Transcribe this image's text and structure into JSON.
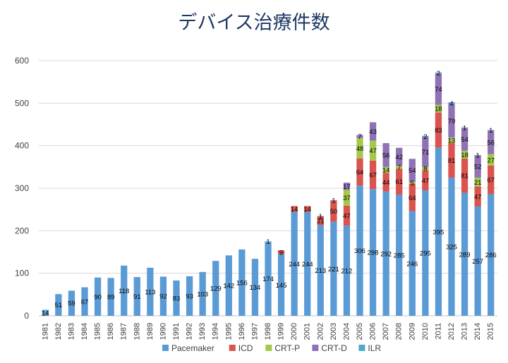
{
  "chart_data": {
    "type": "bar",
    "stacked": true,
    "title": "デバイス治療件数",
    "xlabel": "",
    "ylabel": "",
    "ylim": [
      0,
      600
    ],
    "yticks": [
      0,
      100,
      200,
      300,
      400,
      500,
      600
    ],
    "grid": true,
    "legend_position": "bottom",
    "categories": [
      "1981",
      "1982",
      "1983",
      "1984",
      "1985",
      "1986",
      "1987",
      "1988",
      "1989",
      "1990",
      "1991",
      "1992",
      "1993",
      "1994",
      "1995",
      "1996",
      "1997",
      "1998",
      "1999",
      "2000",
      "2001",
      "2002",
      "2003",
      "2004",
      "2005",
      "2006",
      "2007",
      "2008",
      "2009",
      "2010",
      "2011",
      "2012",
      "2013",
      "2014",
      "2015"
    ],
    "series": [
      {
        "name": "Pacemaker",
        "color": "#5b9bd5",
        "values": [
          14,
          51,
          59,
          67,
          90,
          89,
          118,
          91,
          113,
          92,
          83,
          93,
          103,
          129,
          142,
          156,
          134,
          174,
          145,
          244,
          244,
          213,
          221,
          212,
          306,
          298,
          292,
          285,
          246,
          295,
          395,
          325,
          289,
          257,
          286
        ]
      },
      {
        "name": "ICD",
        "color": "#d9534f",
        "values": [
          0,
          0,
          0,
          0,
          0,
          0,
          0,
          0,
          0,
          0,
          0,
          0,
          0,
          0,
          0,
          0,
          0,
          0,
          9,
          14,
          14,
          21,
          50,
          47,
          64,
          67,
          44,
          61,
          64,
          47,
          83,
          81,
          81,
          47,
          67
        ]
      },
      {
        "name": "CRT-P",
        "color": "#a4c84c",
        "values": [
          0,
          0,
          0,
          0,
          0,
          0,
          0,
          0,
          0,
          0,
          0,
          0,
          0,
          0,
          0,
          0,
          0,
          0,
          0,
          0,
          0,
          0,
          0,
          37,
          48,
          47,
          14,
          7,
          5,
          8,
          18,
          13,
          18,
          21,
          27
        ]
      },
      {
        "name": "CRT-D",
        "color": "#8e72b4",
        "values": [
          0,
          0,
          0,
          0,
          0,
          0,
          0,
          0,
          0,
          0,
          0,
          0,
          0,
          0,
          0,
          0,
          0,
          0,
          0,
          0,
          0,
          0,
          0,
          17,
          7,
          43,
          56,
          42,
          54,
          71,
          74,
          79,
          54,
          52,
          56
        ]
      },
      {
        "name": "ILR",
        "color": "#4bacc6",
        "values": [
          0,
          0,
          0,
          0,
          0,
          0,
          0,
          0,
          0,
          0,
          0,
          0,
          0,
          0,
          0,
          0,
          0,
          1,
          0,
          0,
          0,
          1,
          1,
          0,
          0,
          0,
          0,
          0,
          0,
          2,
          2,
          4,
          1,
          1,
          1
        ]
      }
    ]
  }
}
